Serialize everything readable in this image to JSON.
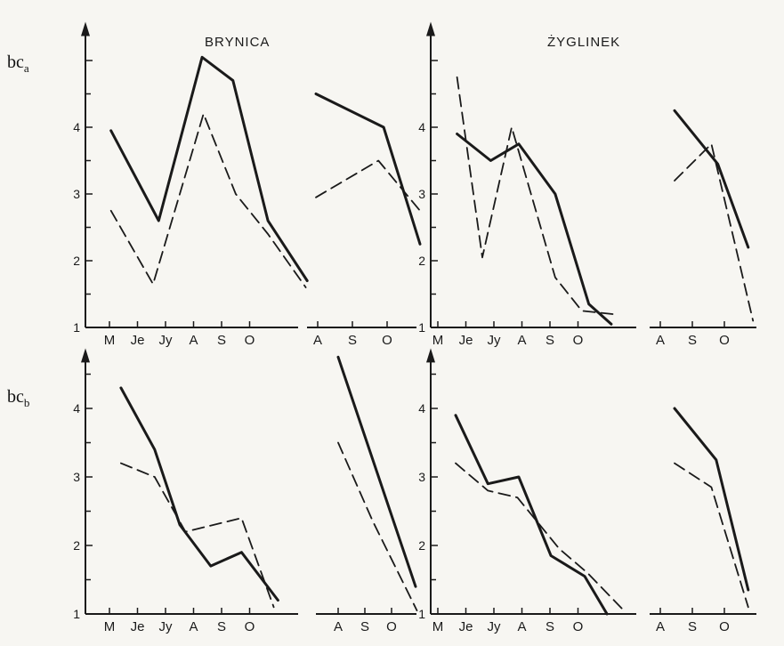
{
  "chart_data": {
    "type": "line",
    "titles": [
      "BRYNICA",
      "ŻYGLINEK"
    ],
    "row_labels": [
      {
        "main": "bc",
        "sub": "a"
      },
      {
        "main": "bc",
        "sub": "b"
      }
    ],
    "panels": [
      {
        "id": "bca-brynica-1",
        "row": 0,
        "ylim": [
          1,
          5.5
        ],
        "yticks": [
          1,
          2,
          3,
          4
        ],
        "xticks": [
          "M",
          "Je",
          "Jy",
          "A",
          "S",
          "O"
        ],
        "series": [
          {
            "style": "solid",
            "points": [
              [
                0.15,
                3.95
              ],
              [
                1.85,
                2.6
              ],
              [
                3.4,
                5.05
              ],
              [
                4.5,
                4.7
              ],
              [
                5.75,
                2.6
              ],
              [
                7.15,
                1.7
              ]
            ]
          },
          {
            "style": "dashed",
            "points": [
              [
                0.15,
                2.75
              ],
              [
                1.65,
                1.65
              ],
              [
                3.45,
                4.2
              ],
              [
                4.6,
                3.0
              ],
              [
                5.75,
                2.4
              ],
              [
                7.1,
                1.6
              ]
            ]
          }
        ]
      },
      {
        "id": "bca-brynica-2",
        "row": 0,
        "ylim": [
          1,
          5.5
        ],
        "yticks": [],
        "xticks": [
          "A",
          "S",
          "O"
        ],
        "series": [
          {
            "style": "solid",
            "points": [
              [
                0.0,
                4.5
              ],
              [
                1.95,
                4.0
              ],
              [
                3.0,
                2.25
              ]
            ]
          },
          {
            "style": "dashed",
            "points": [
              [
                0.0,
                2.95
              ],
              [
                1.8,
                3.5
              ],
              [
                3.0,
                2.75
              ]
            ]
          }
        ]
      },
      {
        "id": "bca-zyglinek-1",
        "row": 0,
        "ylim": [
          1,
          5.5
        ],
        "yticks": [
          1,
          2,
          3,
          4
        ],
        "xticks": [
          "M",
          "Je",
          "Jy",
          "A",
          "S",
          "O"
        ],
        "series": [
          {
            "style": "solid",
            "points": [
              [
                0.75,
                3.9
              ],
              [
                1.95,
                3.5
              ],
              [
                2.95,
                3.75
              ],
              [
                4.25,
                3.0
              ],
              [
                5.45,
                1.35
              ],
              [
                6.25,
                1.05
              ]
            ]
          },
          {
            "style": "dashed",
            "points": [
              [
                0.75,
                4.75
              ],
              [
                1.65,
                2.05
              ],
              [
                2.7,
                4.0
              ],
              [
                4.25,
                1.75
              ],
              [
                5.2,
                1.25
              ],
              [
                6.3,
                1.2
              ]
            ]
          }
        ]
      },
      {
        "id": "bca-zyglinek-2",
        "row": 0,
        "ylim": [
          1,
          5.5
        ],
        "yticks": [],
        "xticks": [
          "A",
          "S",
          "O"
        ],
        "series": [
          {
            "style": "solid",
            "points": [
              [
                0.5,
                4.25
              ],
              [
                1.85,
                3.45
              ],
              [
                2.8,
                2.2
              ]
            ]
          },
          {
            "style": "dashed",
            "points": [
              [
                0.5,
                3.2
              ],
              [
                1.65,
                3.75
              ],
              [
                2.95,
                1.1
              ]
            ]
          }
        ]
      },
      {
        "id": "bcb-brynica-1",
        "row": 1,
        "ylim": [
          1,
          4.8
        ],
        "yticks": [
          1,
          2,
          3,
          4
        ],
        "xticks": [
          "M",
          "Je",
          "Jy",
          "A",
          "S",
          "O"
        ],
        "series": [
          {
            "style": "solid",
            "points": [
              [
                1.3,
                4.3
              ],
              [
                2.5,
                3.4
              ],
              [
                3.4,
                2.3
              ],
              [
                4.5,
                1.7
              ],
              [
                5.6,
                1.9
              ],
              [
                6.9,
                1.2
              ]
            ]
          },
          {
            "style": "dashed",
            "points": [
              [
                1.3,
                3.2
              ],
              [
                2.5,
                3.0
              ],
              [
                3.6,
                2.2
              ],
              [
                5.6,
                2.4
              ],
              [
                6.75,
                1.1
              ]
            ]
          }
        ]
      },
      {
        "id": "bcb-brynica-2",
        "row": 1,
        "ylim": [
          1,
          4.8
        ],
        "yticks": [],
        "xticks": [
          "A",
          "S",
          "O"
        ],
        "series": [
          {
            "style": "solid",
            "points": [
              [
                0.0,
                4.75
              ],
              [
                2.9,
                1.4
              ]
            ]
          },
          {
            "style": "dashed",
            "points": [
              [
                0.0,
                3.5
              ],
              [
                1.3,
                2.35
              ],
              [
                2.95,
                1.05
              ]
            ]
          }
        ]
      },
      {
        "id": "bcb-zyglinek-1",
        "row": 1,
        "ylim": [
          1,
          4.8
        ],
        "yticks": [
          1,
          2,
          3,
          4
        ],
        "xticks": [
          "M",
          "Je",
          "Jy",
          "A",
          "S",
          "O"
        ],
        "series": [
          {
            "style": "solid",
            "points": [
              [
                0.7,
                3.9
              ],
              [
                1.85,
                2.9
              ],
              [
                2.95,
                3.0
              ],
              [
                4.1,
                1.85
              ],
              [
                5.3,
                1.55
              ],
              [
                6.1,
                1.0
              ]
            ]
          },
          {
            "style": "dashed",
            "points": [
              [
                0.7,
                3.2
              ],
              [
                1.85,
                2.8
              ],
              [
                2.9,
                2.7
              ],
              [
                4.4,
                1.95
              ],
              [
                5.4,
                1.6
              ],
              [
                6.7,
                1.05
              ]
            ]
          }
        ]
      },
      {
        "id": "bcb-zyglinek-2",
        "row": 1,
        "ylim": [
          1,
          4.8
        ],
        "yticks": [],
        "xticks": [
          "A",
          "S",
          "O"
        ],
        "series": [
          {
            "style": "solid",
            "points": [
              [
                0.5,
                4.0
              ],
              [
                1.8,
                3.25
              ],
              [
                2.8,
                1.35
              ]
            ]
          },
          {
            "style": "dashed",
            "points": [
              [
                0.5,
                3.2
              ],
              [
                1.65,
                2.85
              ],
              [
                2.8,
                1.1
              ]
            ]
          }
        ]
      }
    ]
  },
  "colors": {
    "ink": "#1a1a1a",
    "paper": "#f7f6f2"
  }
}
